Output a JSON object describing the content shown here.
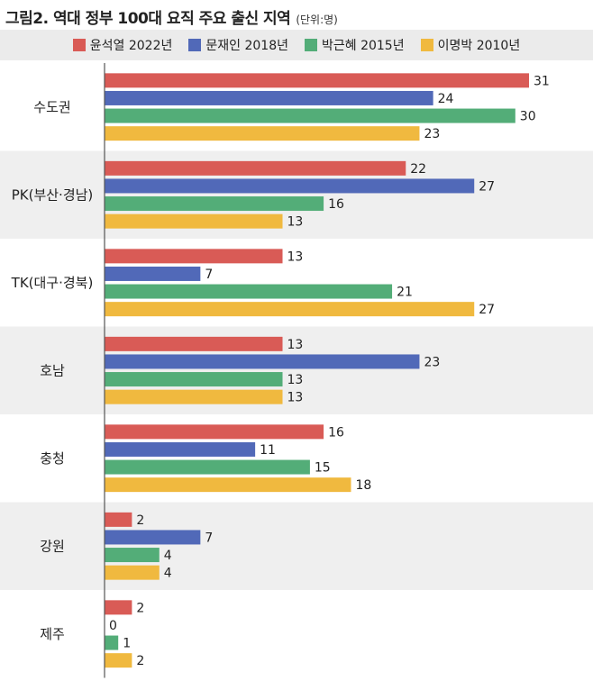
{
  "title": "그림2. 역대 정부 100대 요직 주요 출신 지역",
  "unit": "(단위:명)",
  "colors": {
    "s0": "#d95b56",
    "s1": "#5169b8",
    "s2": "#53ad78",
    "s3": "#f0b93f",
    "band": "#efefef",
    "axis": "#555555"
  },
  "chart_data": {
    "type": "bar",
    "orientation": "horizontal",
    "categories": [
      "수도권",
      "PK(부산·경남)",
      "TK(대구·경북)",
      "호남",
      "충청",
      "강원",
      "제주"
    ],
    "series": [
      {
        "name": "윤석열 2022년",
        "values": [
          31,
          22,
          13,
          13,
          16,
          2,
          2
        ]
      },
      {
        "name": "문재인 2018년",
        "values": [
          24,
          27,
          7,
          23,
          11,
          7,
          0
        ]
      },
      {
        "name": "박근혜 2015년",
        "values": [
          30,
          16,
          21,
          13,
          15,
          4,
          1
        ]
      },
      {
        "name": "이명박 2010년",
        "values": [
          23,
          13,
          27,
          13,
          18,
          4,
          2
        ]
      }
    ],
    "xlim": [
      0,
      31
    ],
    "legend": "top",
    "data_labels": true,
    "grid": false
  }
}
